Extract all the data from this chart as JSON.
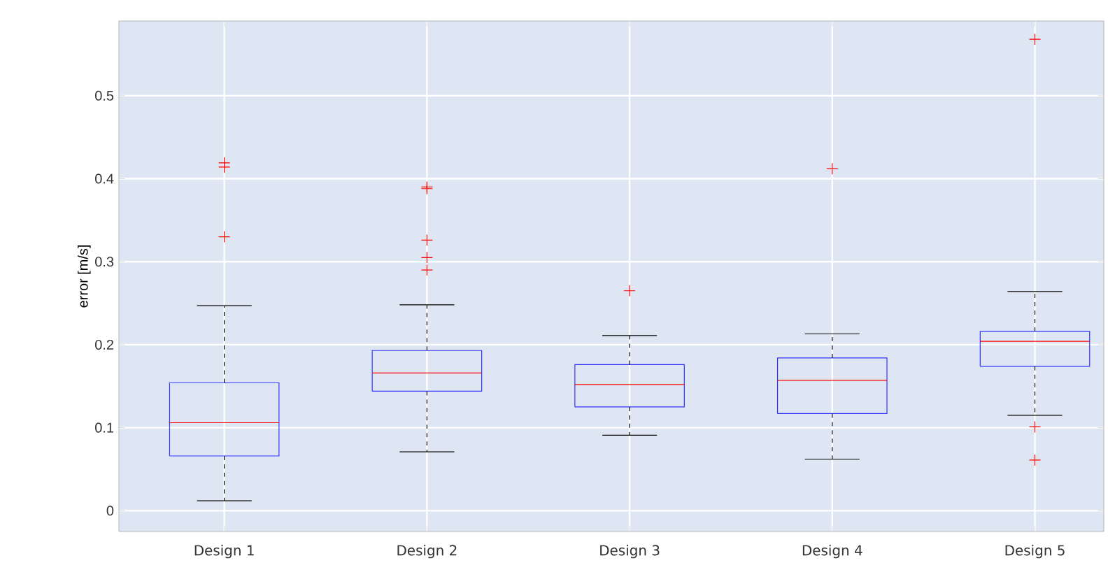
{
  "chart_data": {
    "type": "box",
    "ylabel": "error [m/s]",
    "categories": [
      "Design 1",
      "Design 2",
      "Design 3",
      "Design 4",
      "Design 5"
    ],
    "boxes": [
      {
        "low": 0.012,
        "q1": 0.066,
        "median": 0.106,
        "q3": 0.154,
        "high": 0.247,
        "outliers": [
          0.33,
          0.414,
          0.419
        ]
      },
      {
        "low": 0.071,
        "q1": 0.144,
        "median": 0.166,
        "q3": 0.193,
        "high": 0.248,
        "outliers": [
          0.29,
          0.305,
          0.326,
          0.388,
          0.39
        ]
      },
      {
        "low": 0.091,
        "q1": 0.125,
        "median": 0.152,
        "q3": 0.176,
        "high": 0.211,
        "outliers": [
          0.265
        ]
      },
      {
        "low": 0.062,
        "q1": 0.117,
        "median": 0.157,
        "q3": 0.184,
        "high": 0.213,
        "outliers": [
          0.412
        ]
      },
      {
        "low": 0.115,
        "q1": 0.174,
        "median": 0.204,
        "q3": 0.216,
        "high": 0.264,
        "outliers": [
          0.061,
          0.101,
          0.568
        ]
      }
    ],
    "color": "#3333ff",
    "ylim": [
      -0.025,
      0.59
    ],
    "yticks": [
      0,
      0.1,
      0.2,
      0.3,
      0.4,
      0.5
    ],
    "grid": true,
    "line_style": "dashed",
    "marker": "cross"
  }
}
